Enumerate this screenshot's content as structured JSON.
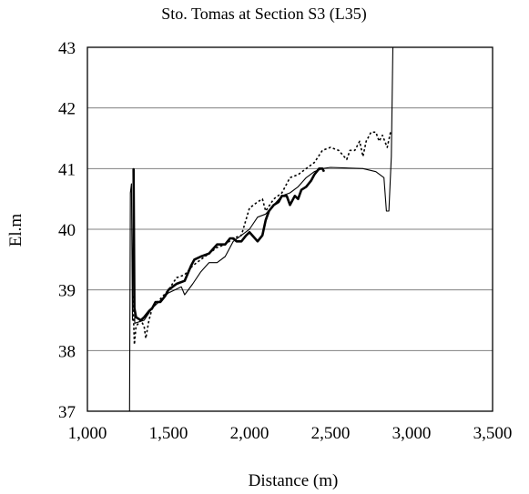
{
  "chart_data": {
    "type": "line",
    "title": "Sto. Tomas at Section S3 (L35)",
    "xlabel": "Distance (m)",
    "ylabel": "El.m",
    "xlim": [
      1000,
      3500
    ],
    "ylim": [
      37,
      43
    ],
    "x_ticks": [
      1000,
      1500,
      2000,
      2500,
      3000,
      3500
    ],
    "x_tick_labels": [
      "1,000",
      "1,500",
      "2,000",
      "2,500",
      "3,000",
      "3,500"
    ],
    "y_ticks": [
      37,
      38,
      39,
      40,
      41,
      42,
      43
    ],
    "y_tick_labels": [
      "37",
      "38",
      "39",
      "40",
      "41",
      "42",
      "43"
    ],
    "grid": "horizontal",
    "legend": "none",
    "series": [
      {
        "style": "thin-solid",
        "color": "#000000",
        "points": [
          [
            1260,
            37.0
          ],
          [
            1265,
            40.6
          ],
          [
            1272,
            40.75
          ],
          [
            1278,
            38.5
          ],
          [
            1285,
            41.0
          ],
          [
            1292,
            38.45
          ],
          [
            1350,
            38.5
          ],
          [
            1400,
            38.7
          ],
          [
            1500,
            38.95
          ],
          [
            1580,
            39.05
          ],
          [
            1600,
            38.92
          ],
          [
            1650,
            39.1
          ],
          [
            1700,
            39.3
          ],
          [
            1750,
            39.45
          ],
          [
            1800,
            39.45
          ],
          [
            1850,
            39.55
          ],
          [
            1900,
            39.8
          ],
          [
            1950,
            39.9
          ],
          [
            2000,
            40.0
          ],
          [
            2050,
            40.2
          ],
          [
            2100,
            40.25
          ],
          [
            2150,
            40.4
          ],
          [
            2200,
            40.55
          ],
          [
            2250,
            40.6
          ],
          [
            2300,
            40.7
          ],
          [
            2350,
            40.85
          ],
          [
            2400,
            40.95
          ],
          [
            2450,
            41.0
          ],
          [
            2500,
            41.02
          ],
          [
            2700,
            41.0
          ],
          [
            2780,
            40.95
          ],
          [
            2830,
            40.85
          ],
          [
            2845,
            40.3
          ],
          [
            2860,
            40.3
          ],
          [
            2875,
            41.2
          ],
          [
            2885,
            43.0
          ]
        ]
      },
      {
        "style": "thick-solid",
        "color": "#000000",
        "points": [
          [
            1285,
            41.0
          ],
          [
            1290,
            38.7
          ],
          [
            1300,
            38.55
          ],
          [
            1330,
            38.5
          ],
          [
            1350,
            38.55
          ],
          [
            1380,
            38.65
          ],
          [
            1400,
            38.7
          ],
          [
            1420,
            38.8
          ],
          [
            1450,
            38.8
          ],
          [
            1480,
            38.9
          ],
          [
            1500,
            39.0
          ],
          [
            1550,
            39.1
          ],
          [
            1600,
            39.15
          ],
          [
            1640,
            39.4
          ],
          [
            1660,
            39.5
          ],
          [
            1700,
            39.55
          ],
          [
            1750,
            39.6
          ],
          [
            1800,
            39.75
          ],
          [
            1850,
            39.75
          ],
          [
            1880,
            39.85
          ],
          [
            1900,
            39.85
          ],
          [
            1920,
            39.8
          ],
          [
            1950,
            39.8
          ],
          [
            1980,
            39.9
          ],
          [
            2000,
            39.95
          ],
          [
            2050,
            39.8
          ],
          [
            2080,
            39.9
          ],
          [
            2100,
            40.15
          ],
          [
            2120,
            40.3
          ],
          [
            2150,
            40.4
          ],
          [
            2180,
            40.45
          ],
          [
            2200,
            40.55
          ],
          [
            2230,
            40.55
          ],
          [
            2250,
            40.4
          ],
          [
            2280,
            40.55
          ],
          [
            2300,
            40.5
          ],
          [
            2320,
            40.65
          ],
          [
            2350,
            40.7
          ],
          [
            2380,
            40.8
          ],
          [
            2400,
            40.9
          ],
          [
            2430,
            41.0
          ],
          [
            2450,
            41.0
          ],
          [
            2460,
            40.95
          ]
        ]
      },
      {
        "style": "dotted",
        "color": "#000000",
        "points": [
          [
            1280,
            38.9
          ],
          [
            1290,
            38.1
          ],
          [
            1300,
            38.4
          ],
          [
            1330,
            38.5
          ],
          [
            1350,
            38.4
          ],
          [
            1360,
            38.2
          ],
          [
            1380,
            38.5
          ],
          [
            1400,
            38.7
          ],
          [
            1450,
            38.85
          ],
          [
            1500,
            39.0
          ],
          [
            1550,
            39.2
          ],
          [
            1600,
            39.25
          ],
          [
            1650,
            39.4
          ],
          [
            1700,
            39.5
          ],
          [
            1750,
            39.6
          ],
          [
            1800,
            39.7
          ],
          [
            1850,
            39.75
          ],
          [
            1900,
            39.85
          ],
          [
            1950,
            39.9
          ],
          [
            2000,
            40.35
          ],
          [
            2050,
            40.45
          ],
          [
            2080,
            40.5
          ],
          [
            2100,
            40.3
          ],
          [
            2150,
            40.5
          ],
          [
            2200,
            40.6
          ],
          [
            2250,
            40.85
          ],
          [
            2300,
            40.9
          ],
          [
            2350,
            41.0
          ],
          [
            2400,
            41.1
          ],
          [
            2450,
            41.3
          ],
          [
            2500,
            41.35
          ],
          [
            2550,
            41.3
          ],
          [
            2600,
            41.15
          ],
          [
            2620,
            41.3
          ],
          [
            2650,
            41.3
          ],
          [
            2680,
            41.45
          ],
          [
            2700,
            41.2
          ],
          [
            2720,
            41.45
          ],
          [
            2750,
            41.6
          ],
          [
            2780,
            41.6
          ],
          [
            2800,
            41.45
          ],
          [
            2820,
            41.55
          ],
          [
            2850,
            41.35
          ],
          [
            2870,
            41.6
          ]
        ]
      }
    ]
  }
}
